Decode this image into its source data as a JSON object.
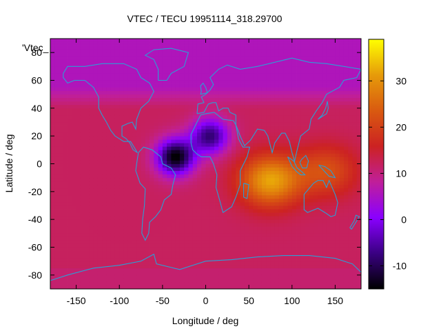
{
  "chart_data": {
    "type": "heatmap",
    "title": "VTEC / TECU 19951114_318.29700",
    "xlabel": "Longitude / deg",
    "ylabel": "Latitude / deg",
    "key_title": "'Vtec_",
    "xlim": [
      -180,
      180
    ],
    "ylim": [
      -90,
      90
    ],
    "x_ticks": [
      -150,
      -100,
      -50,
      0,
      50,
      100,
      150
    ],
    "y_ticks": [
      -80,
      -60,
      -40,
      -20,
      0,
      20,
      40,
      60,
      80
    ],
    "colorbar": {
      "range": [
        -15,
        39
      ],
      "ticks": [
        -10,
        0,
        10,
        20,
        30
      ],
      "palette": [
        "#000000",
        "#3a0082",
        "#8a00ff",
        "#c01f9a",
        "#cc2222",
        "#d95a10",
        "#e69b0a",
        "#ffff00"
      ]
    },
    "grid_spacing_deg": {
      "lon": 5,
      "lat": 2.5
    },
    "field_description": {
      "background_tecu": 12,
      "features": [
        {
          "kind": "peak",
          "lon": 75,
          "lat": -12,
          "amplitude_tecu": 20
        },
        {
          "kind": "peak",
          "lon": 140,
          "lat": -5,
          "amplitude_tecu": 10
        },
        {
          "kind": "depletion",
          "lon": -35,
          "lat": 5,
          "amplitude_tecu": -27
        },
        {
          "kind": "depletion",
          "lon": 5,
          "lat": 20,
          "amplitude_tecu": -20
        },
        {
          "kind": "northern_high_latitude",
          "lat_above": 55,
          "value_tecu": 3
        }
      ]
    },
    "colors": {
      "coastline": "#2a9fd6",
      "frame": "#000000"
    }
  }
}
